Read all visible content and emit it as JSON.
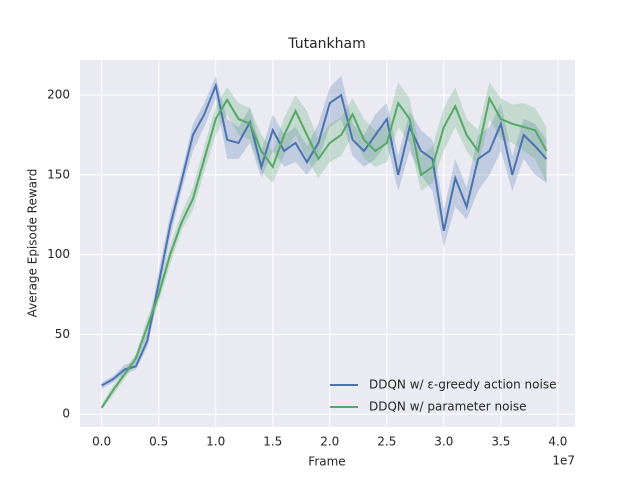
{
  "chart_data": {
    "type": "line",
    "title": "Tutankham",
    "xlabel": "Frame",
    "ylabel": "Average Episode Reward",
    "x_offset_label": "1e7",
    "x": [
      0,
      1000000,
      2000000,
      3000000,
      4000000,
      5000000,
      6000000,
      7000000,
      8000000,
      9000000,
      10000000,
      11000000,
      12000000,
      13000000,
      14000000,
      15000000,
      16000000,
      17000000,
      18000000,
      19000000,
      20000000,
      21000000,
      22000000,
      23000000,
      24000000,
      25000000,
      26000000,
      27000000,
      28000000,
      29000000,
      30000000,
      31000000,
      32000000,
      33000000,
      34000000,
      35000000,
      36000000,
      37000000,
      38000000,
      39000000
    ],
    "series": [
      {
        "name": "DDQN w/ ε-greedy action noise",
        "color": "#4c72b0",
        "values": [
          18,
          22,
          28,
          30,
          46,
          82,
          118,
          146,
          175,
          188,
          206,
          172,
          170,
          183,
          155,
          178,
          165,
          170,
          158,
          170,
          195,
          200,
          172,
          165,
          175,
          185,
          150,
          180,
          165,
          160,
          115,
          148,
          130,
          160,
          165,
          182,
          150,
          175,
          168,
          160
        ],
        "lower": [
          16,
          20,
          25,
          28,
          42,
          75,
          110,
          140,
          165,
          180,
          198,
          160,
          160,
          170,
          148,
          165,
          155,
          158,
          150,
          160,
          180,
          185,
          162,
          155,
          160,
          170,
          140,
          165,
          150,
          140,
          105,
          130,
          122,
          140,
          150,
          165,
          140,
          160,
          150,
          145
        ],
        "upper": [
          20,
          24,
          31,
          33,
          52,
          90,
          125,
          152,
          182,
          195,
          212,
          185,
          180,
          192,
          165,
          188,
          175,
          180,
          168,
          182,
          205,
          212,
          182,
          175,
          188,
          195,
          162,
          190,
          178,
          172,
          128,
          160,
          142,
          175,
          180,
          195,
          162,
          185,
          182,
          172
        ]
      },
      {
        "name": "DDQN w/ parameter noise",
        "color": "#55a868",
        "values": [
          4,
          15,
          25,
          35,
          55,
          75,
          100,
          120,
          135,
          160,
          185,
          197,
          185,
          182,
          165,
          155,
          175,
          190,
          175,
          160,
          170,
          175,
          188,
          172,
          165,
          170,
          195,
          185,
          150,
          155,
          180,
          193,
          175,
          165,
          198,
          185,
          182,
          180,
          178,
          165
        ],
        "lower": [
          3,
          12,
          22,
          32,
          50,
          70,
          94,
          115,
          128,
          152,
          175,
          188,
          175,
          172,
          152,
          145,
          162,
          175,
          160,
          148,
          158,
          162,
          175,
          160,
          155,
          158,
          180,
          170,
          140,
          145,
          165,
          180,
          165,
          155,
          185,
          172,
          170,
          165,
          160,
          145
        ],
        "upper": [
          6,
          18,
          28,
          38,
          60,
          80,
          106,
          126,
          142,
          168,
          193,
          205,
          195,
          192,
          175,
          165,
          186,
          200,
          190,
          172,
          182,
          186,
          198,
          185,
          178,
          182,
          208,
          198,
          162,
          168,
          192,
          205,
          185,
          178,
          208,
          198,
          194,
          195,
          192,
          180
        ]
      }
    ],
    "xlim": [
      -1900000,
      41500000
    ],
    "ylim": [
      -8,
      222
    ],
    "xticks": [
      {
        "value": 0,
        "label": "0.0"
      },
      {
        "value": 5000000,
        "label": "0.5"
      },
      {
        "value": 10000000,
        "label": "1.0"
      },
      {
        "value": 15000000,
        "label": "1.5"
      },
      {
        "value": 20000000,
        "label": "2.0"
      },
      {
        "value": 25000000,
        "label": "2.5"
      },
      {
        "value": 30000000,
        "label": "3.0"
      },
      {
        "value": 35000000,
        "label": "3.5"
      },
      {
        "value": 40000000,
        "label": "4.0"
      }
    ],
    "yticks": [
      0,
      50,
      100,
      150,
      200
    ],
    "grid": true,
    "legend": "lower right"
  }
}
